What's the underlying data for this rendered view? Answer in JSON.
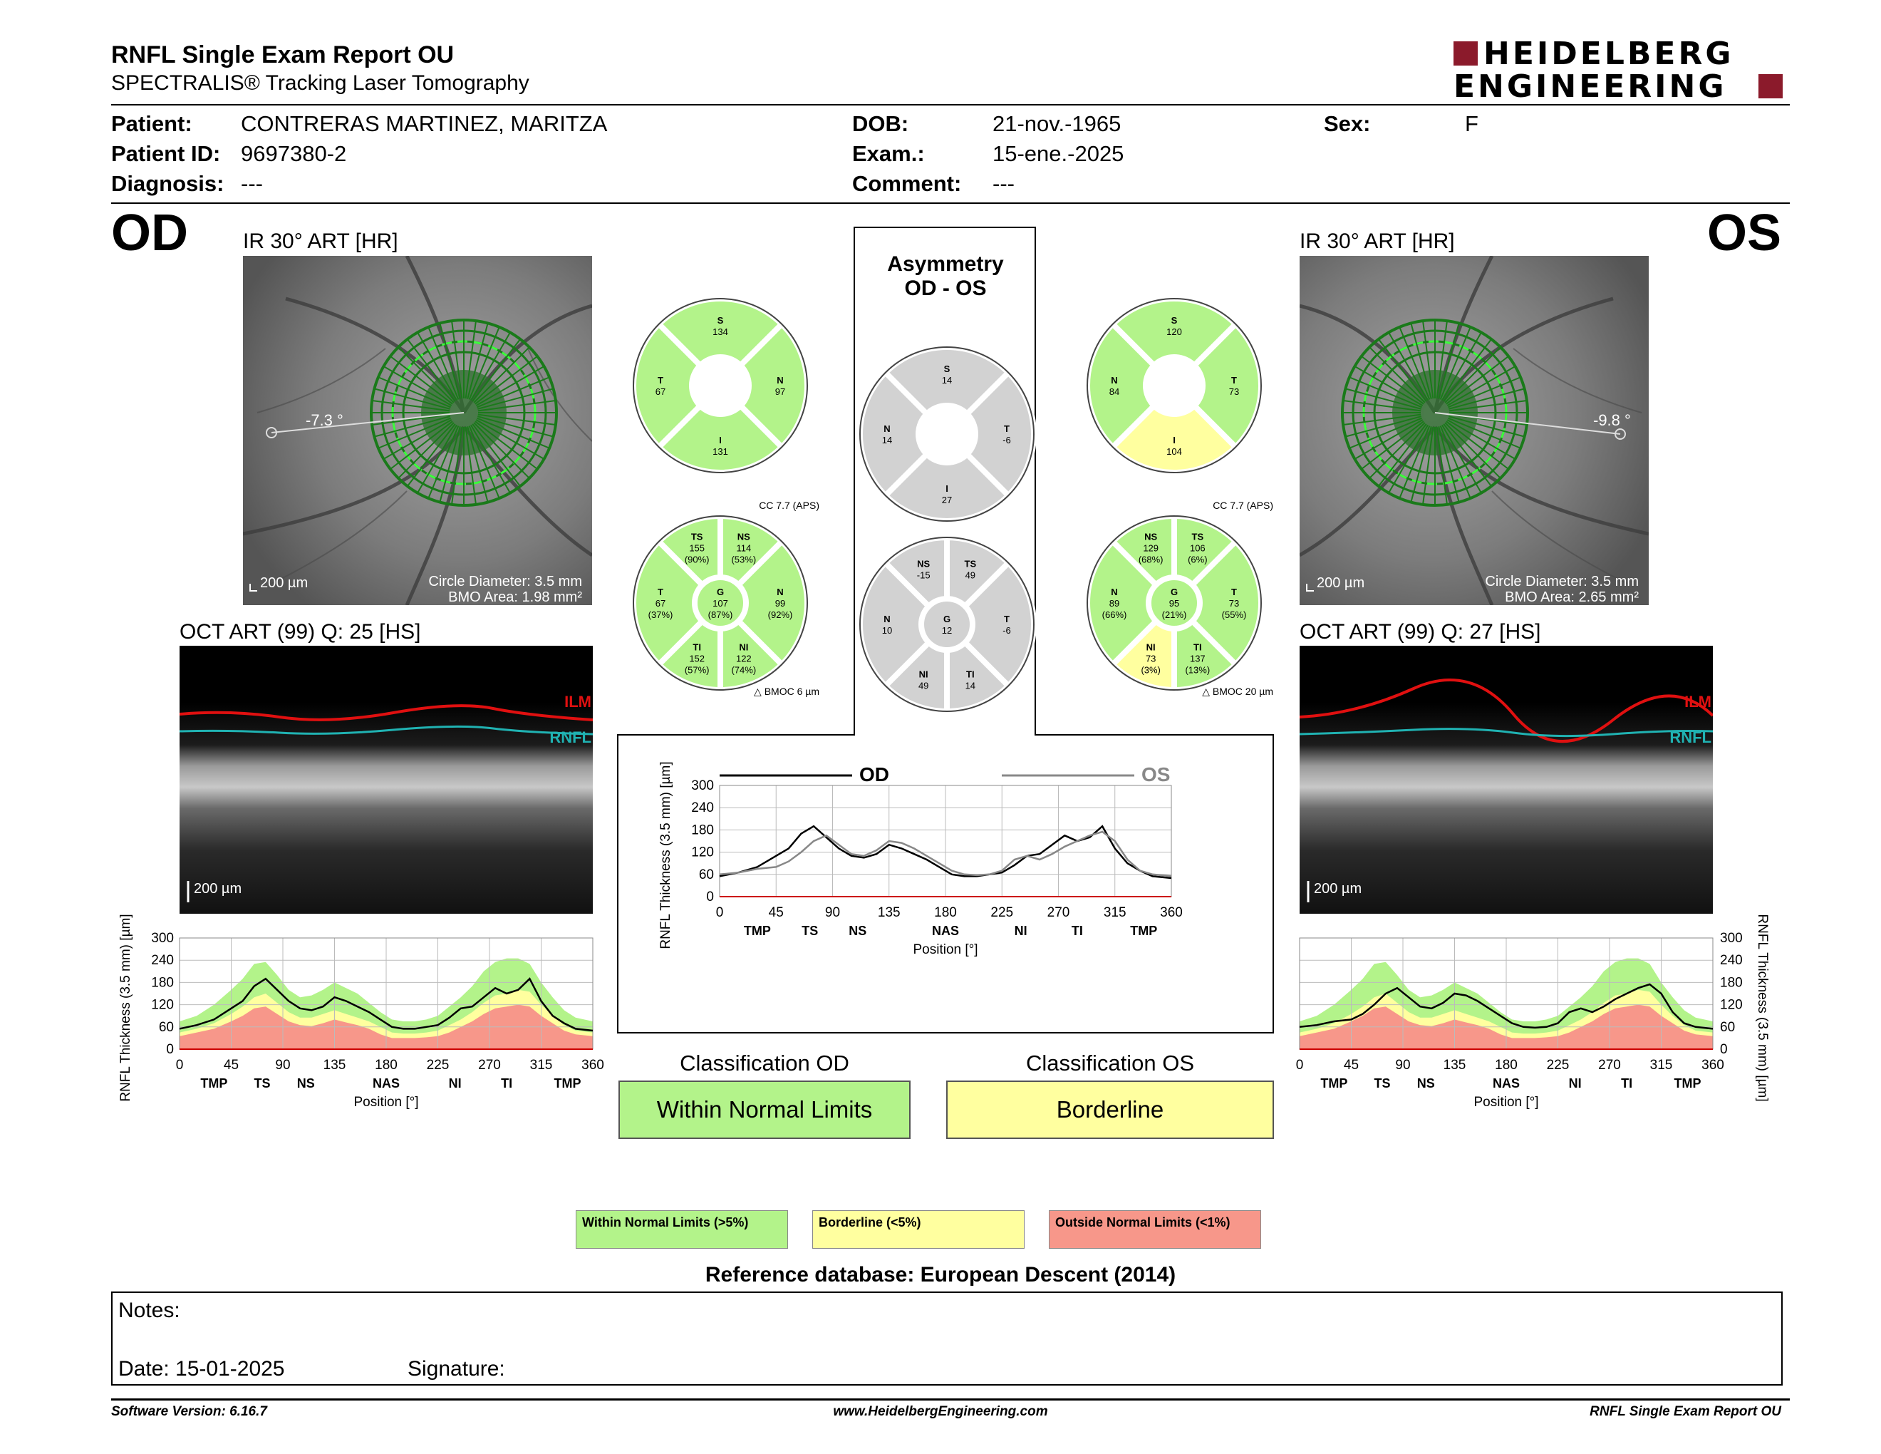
{
  "header": {
    "title": "RNFL Single Exam Report OU",
    "subtitle": "SPECTRALIS® Tracking Laser Tomography",
    "logo_line1": "HEIDELBERG",
    "logo_line2": "ENGINEERING",
    "brand_red": "#8b1a2b"
  },
  "patient": {
    "patient_label": "Patient:",
    "patient_value": "CONTRERAS MARTINEZ, MARITZA",
    "id_label": "Patient ID:",
    "id_value": "9697380-2",
    "diag_label": "Diagnosis:",
    "diag_value": "---",
    "dob_label": "DOB:",
    "dob_value": "21-nov.-1965",
    "exam_label": "Exam.:",
    "exam_value": "15-ene.-2025",
    "comment_label": "Comment:",
    "comment_value": "---",
    "sex_label": "Sex:",
    "sex_value": "F"
  },
  "od": {
    "eye": "OD",
    "ir_title": "IR 30° ART [HR]",
    "angle": "-7.3 °",
    "scale": "200 µm",
    "circle_diameter": "Circle Diameter: 3.5 mm",
    "bmo_area": "BMO Area: 1.98 mm²",
    "oct_title": "OCT ART (99) Q: 25 [HS]",
    "oct_scale": "200 µm",
    "ilm": "ILM",
    "rnfl": "RNFL",
    "quadrants": {
      "S": "134",
      "T": "67",
      "N": "97",
      "I": "131"
    },
    "sectors": {
      "TS": "155",
      "TS_p": "(90%)",
      "NS": "114",
      "NS_p": "(53%)",
      "T": "67",
      "T_p": "(37%)",
      "G": "107",
      "G_p": "(87%)",
      "N": "99",
      "N_p": "(92%)",
      "TI": "152",
      "TI_p": "(57%)",
      "NI": "122",
      "NI_p": "(74%)"
    },
    "cc": "CC 7.7 (APS)",
    "bmoc": "BMOC 6 µm",
    "classification_label": "Classification OD",
    "classification": "Within Normal Limits"
  },
  "os": {
    "eye": "OS",
    "ir_title": "IR 30° ART [HR]",
    "angle": "-9.8 °",
    "scale": "200 µm",
    "circle_diameter": "Circle Diameter: 3.5 mm",
    "bmo_area": "BMO Area: 2.65 mm²",
    "oct_title": "OCT ART (99) Q: 27 [HS]",
    "oct_scale": "200 µm",
    "ilm": "ILM",
    "rnfl": "RNFL",
    "quadrants": {
      "S": "120",
      "N": "84",
      "T": "73",
      "I": "104"
    },
    "sectors": {
      "NS": "129",
      "NS_p": "(68%)",
      "TS": "106",
      "TS_p": "(6%)",
      "N": "89",
      "N_p": "(66%)",
      "G": "95",
      "G_p": "(21%)",
      "T": "73",
      "T_p": "(55%)",
      "NI": "73",
      "NI_p": "(3%)",
      "TI": "137",
      "TI_p": "(13%)"
    },
    "cc": "CC 7.7 (APS)",
    "bmoc": "BMOC 20 µm",
    "classification_label": "Classification OS",
    "classification": "Borderline"
  },
  "asymmetry": {
    "title1": "Asymmetry",
    "title2": "OD - OS",
    "quadrants": {
      "S": "14",
      "N": "14",
      "T": "-6",
      "I": "27"
    },
    "sectors": {
      "NS": "-15",
      "TS": "49",
      "N": "10",
      "G": "12",
      "T": "-6",
      "NI": "49",
      "TI": "14"
    }
  },
  "chart_labels": {
    "od_legend": "OD",
    "os_legend": "OS",
    "ylabel": "RNFL Thickness (3.5 mm) [µm]",
    "xlabel": "Position [°]",
    "regions": [
      "TMP",
      "TS",
      "NS",
      "NAS",
      "NI",
      "TI",
      "TMP"
    ]
  },
  "chart_data": [
    {
      "type": "line",
      "title": "OD",
      "xlabel": "Position [°]",
      "ylabel": "RNFL Thickness (3.5 mm) [µm]",
      "xlim": [
        0,
        360
      ],
      "ylim": [
        0,
        300
      ],
      "xticks": [
        0,
        45,
        90,
        135,
        180,
        225,
        270,
        315,
        360
      ],
      "yticks": [
        0,
        60,
        120,
        180,
        240,
        300
      ],
      "x": [
        0,
        15,
        30,
        45,
        55,
        65,
        75,
        85,
        95,
        105,
        115,
        125,
        135,
        145,
        155,
        165,
        175,
        185,
        195,
        205,
        215,
        225,
        235,
        245,
        255,
        265,
        275,
        285,
        295,
        305,
        315,
        325,
        335,
        345,
        360
      ],
      "series": [
        {
          "name": "OD",
          "values": [
            55,
            65,
            80,
            110,
            130,
            170,
            190,
            160,
            130,
            110,
            105,
            115,
            140,
            130,
            115,
            100,
            80,
            60,
            55,
            55,
            60,
            65,
            85,
            110,
            115,
            140,
            165,
            150,
            160,
            190,
            130,
            90,
            70,
            55,
            50
          ]
        }
      ],
      "normative_bands": {
        "red_upper": [
          35,
          45,
          55,
          75,
          90,
          110,
          115,
          95,
          75,
          65,
          62,
          70,
          80,
          72,
          65,
          55,
          40,
          30,
          30,
          30,
          32,
          35,
          45,
          60,
          75,
          95,
          110,
          115,
          120,
          115,
          90,
          70,
          50,
          40,
          35
        ],
        "yellow_upper": [
          45,
          55,
          70,
          95,
          115,
          140,
          150,
          125,
          100,
          85,
          85,
          95,
          105,
          95,
          85,
          75,
          60,
          45,
          42,
          42,
          45,
          50,
          65,
          80,
          100,
          125,
          145,
          150,
          160,
          155,
          120,
          90,
          65,
          50,
          45
        ],
        "green_upper": [
          75,
          90,
          120,
          160,
          190,
          230,
          235,
          200,
          160,
          140,
          145,
          160,
          180,
          165,
          150,
          125,
          100,
          80,
          75,
          75,
          80,
          90,
          115,
          140,
          170,
          210,
          235,
          245,
          245,
          230,
          180,
          140,
          105,
          85,
          75
        ]
      },
      "legend": "none"
    },
    {
      "type": "line",
      "title": "OS",
      "xlabel": "Position [°]",
      "ylabel": "RNFL Thickness (3.5 mm) [µm]",
      "xlim": [
        0,
        360
      ],
      "ylim": [
        0,
        300
      ],
      "xticks": [
        0,
        45,
        90,
        135,
        180,
        225,
        270,
        315,
        360
      ],
      "yticks": [
        0,
        60,
        120,
        180,
        240,
        300
      ],
      "x": [
        0,
        15,
        30,
        45,
        55,
        65,
        75,
        85,
        95,
        105,
        115,
        125,
        135,
        145,
        155,
        165,
        175,
        185,
        195,
        205,
        215,
        225,
        235,
        245,
        255,
        265,
        275,
        285,
        295,
        305,
        315,
        325,
        335,
        345,
        360
      ],
      "series": [
        {
          "name": "OS",
          "values": [
            60,
            65,
            75,
            80,
            95,
            120,
            150,
            165,
            140,
            115,
            110,
            125,
            150,
            145,
            130,
            110,
            90,
            70,
            60,
            58,
            60,
            70,
            100,
            110,
            100,
            115,
            135,
            150,
            165,
            175,
            150,
            100,
            70,
            60,
            55
          ]
        }
      ],
      "normative_bands": {
        "red_upper": [
          35,
          45,
          55,
          75,
          90,
          110,
          115,
          95,
          75,
          65,
          62,
          70,
          80,
          72,
          65,
          55,
          40,
          30,
          30,
          30,
          32,
          35,
          45,
          60,
          75,
          95,
          110,
          115,
          120,
          115,
          90,
          70,
          50,
          40,
          35
        ],
        "yellow_upper": [
          45,
          55,
          70,
          95,
          115,
          140,
          150,
          125,
          100,
          85,
          85,
          95,
          105,
          95,
          85,
          75,
          60,
          45,
          42,
          42,
          45,
          50,
          65,
          80,
          100,
          125,
          145,
          150,
          160,
          155,
          120,
          90,
          65,
          50,
          45
        ],
        "green_upper": [
          75,
          90,
          120,
          160,
          190,
          230,
          235,
          200,
          160,
          140,
          145,
          160,
          180,
          165,
          150,
          125,
          100,
          80,
          75,
          75,
          80,
          90,
          115,
          140,
          170,
          210,
          235,
          245,
          245,
          230,
          180,
          140,
          105,
          85,
          75
        ]
      },
      "legend": "none"
    },
    {
      "type": "line",
      "title": "",
      "xlabel": "Position [°]",
      "ylabel": "RNFL Thickness (3.5 mm) [µm]",
      "xlim": [
        0,
        360
      ],
      "ylim": [
        0,
        300
      ],
      "xticks": [
        0,
        45,
        90,
        135,
        180,
        225,
        270,
        315,
        360
      ],
      "yticks": [
        0,
        60,
        120,
        180,
        240,
        300
      ],
      "x": [
        0,
        15,
        30,
        45,
        55,
        65,
        75,
        85,
        95,
        105,
        115,
        125,
        135,
        145,
        155,
        165,
        175,
        185,
        195,
        205,
        215,
        225,
        235,
        245,
        255,
        265,
        275,
        285,
        295,
        305,
        315,
        325,
        335,
        345,
        360
      ],
      "series": [
        {
          "name": "OD",
          "values": [
            55,
            65,
            80,
            110,
            130,
            170,
            190,
            160,
            130,
            110,
            105,
            115,
            140,
            130,
            115,
            100,
            80,
            60,
            55,
            55,
            60,
            65,
            85,
            110,
            115,
            140,
            165,
            150,
            160,
            190,
            130,
            90,
            70,
            55,
            50
          ]
        },
        {
          "name": "OS",
          "values": [
            60,
            65,
            75,
            80,
            95,
            120,
            150,
            165,
            140,
            115,
            110,
            125,
            150,
            145,
            130,
            110,
            90,
            70,
            60,
            58,
            60,
            70,
            100,
            110,
            100,
            115,
            135,
            150,
            165,
            175,
            150,
            100,
            70,
            60,
            55
          ]
        }
      ],
      "legend": "top"
    }
  ],
  "legend": {
    "wnl": "Within Normal Limits (>5%)",
    "bl": "Borderline (<5%)",
    "onl": "Outside Normal Limits (<1%)",
    "green": "#b3f38a",
    "yellow": "#ffff9f",
    "red": "#f7978a"
  },
  "reference": "Reference database: European Descent (2014)",
  "notes": {
    "notes_label": "Notes:",
    "date_label": "Date: 15-01-2025",
    "signature_label": "Signature:"
  },
  "footer": {
    "software": "Software Version: 6.16.7",
    "website": "www.HeidelbergEngineering.com",
    "report_name": "RNFL Single Exam Report OU"
  }
}
